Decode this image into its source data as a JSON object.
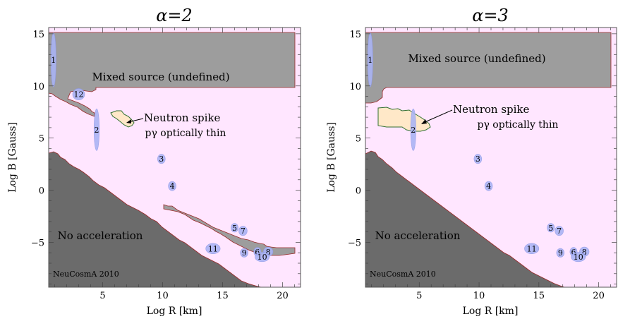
{
  "figure": {
    "watermark": "NeuCosmA 2010",
    "xlabel": "Log R [km]",
    "ylabel": "Log B [Gauss]",
    "xlim": [
      0.5,
      21.5
    ],
    "ylim": [
      -9.3,
      15.6
    ],
    "xticks": [
      5,
      10,
      15,
      20
    ],
    "yticks": [
      -5,
      0,
      5,
      10,
      15
    ],
    "region_labels": {
      "mixed": "Mixed source (undefined)",
      "thin": "pγ optically thin",
      "noacc": "No acceleration",
      "spike": "Neutron spike"
    },
    "colors": {
      "mixed": "#9d9d9d",
      "noacc": "#6b6b6b",
      "thin": "#ffe6ff",
      "spike": "#ffe8c8",
      "source": "#aab4f4",
      "border": "#9a2a2a"
    }
  },
  "chart_data": [
    {
      "type": "scatter",
      "alpha_label": "α=2",
      "title": "α=2",
      "xlabel": "Log R [km]",
      "ylabel": "Log B [Gauss]",
      "xlim": [
        0.5,
        21.5
      ],
      "ylim": [
        -9.3,
        15.6
      ],
      "sources": [
        {
          "id": "1",
          "x": 0.9,
          "y": 12.5,
          "rx": 0.22,
          "ry": 2.6
        },
        {
          "id": "2",
          "x": 4.5,
          "y": 5.8,
          "rx": 0.22,
          "ry": 2.0
        },
        {
          "id": "3",
          "x": 9.9,
          "y": 3.0,
          "rx": 0.32,
          "ry": 0.45
        },
        {
          "id": "4",
          "x": 10.8,
          "y": 0.4,
          "rx": 0.32,
          "ry": 0.45
        },
        {
          "id": "5",
          "x": 16.0,
          "y": -3.6,
          "rx": 0.3,
          "ry": 0.42
        },
        {
          "id": "6",
          "x": 17.9,
          "y": -5.9,
          "rx": 0.3,
          "ry": 0.42
        },
        {
          "id": "7",
          "x": 16.7,
          "y": -3.9,
          "rx": 0.35,
          "ry": 0.45
        },
        {
          "id": "8",
          "x": 18.8,
          "y": -5.9,
          "rx": 0.4,
          "ry": 0.45
        },
        {
          "id": "9",
          "x": 16.8,
          "y": -6.0,
          "rx": 0.32,
          "ry": 0.42
        },
        {
          "id": "10",
          "x": 18.3,
          "y": -6.4,
          "rx": 0.6,
          "ry": 0.45
        },
        {
          "id": "11",
          "x": 14.2,
          "y": -5.6,
          "rx": 0.6,
          "ry": 0.5
        },
        {
          "id": "12",
          "x": 3.0,
          "y": 9.2,
          "rx": 0.5,
          "ry": 0.55
        }
      ]
    },
    {
      "type": "scatter",
      "alpha_label": "α=3",
      "title": "α=3",
      "xlabel": "Log R [km]",
      "ylabel": "Log B [Gauss]",
      "xlim": [
        0.5,
        21.5
      ],
      "ylim": [
        -9.3,
        15.6
      ],
      "sources": [
        {
          "id": "1",
          "x": 0.9,
          "y": 12.5,
          "rx": 0.22,
          "ry": 2.6
        },
        {
          "id": "2",
          "x": 4.5,
          "y": 5.8,
          "rx": 0.22,
          "ry": 2.0
        },
        {
          "id": "3",
          "x": 9.9,
          "y": 3.0,
          "rx": 0.32,
          "ry": 0.45
        },
        {
          "id": "4",
          "x": 10.8,
          "y": 0.4,
          "rx": 0.32,
          "ry": 0.45
        },
        {
          "id": "5",
          "x": 16.0,
          "y": -3.6,
          "rx": 0.3,
          "ry": 0.42
        },
        {
          "id": "6",
          "x": 17.9,
          "y": -5.9,
          "rx": 0.3,
          "ry": 0.42
        },
        {
          "id": "7",
          "x": 16.7,
          "y": -3.9,
          "rx": 0.35,
          "ry": 0.45
        },
        {
          "id": "8",
          "x": 18.8,
          "y": -5.9,
          "rx": 0.4,
          "ry": 0.45
        },
        {
          "id": "9",
          "x": 16.8,
          "y": -6.0,
          "rx": 0.32,
          "ry": 0.42
        },
        {
          "id": "10",
          "x": 18.3,
          "y": -6.4,
          "rx": 0.6,
          "ry": 0.45
        },
        {
          "id": "11",
          "x": 14.4,
          "y": -5.6,
          "rx": 0.6,
          "ry": 0.5
        }
      ]
    }
  ]
}
